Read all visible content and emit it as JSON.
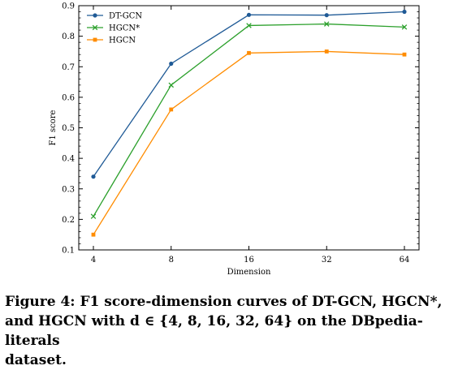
{
  "chart_data": {
    "type": "line",
    "categories": [
      "4",
      "8",
      "16",
      "32",
      "64"
    ],
    "series": [
      {
        "name": "DT-GCN",
        "values": [
          0.34,
          0.71,
          0.87,
          0.869,
          0.88
        ],
        "color": "#1f5a96",
        "marker": "dot"
      },
      {
        "name": "HGCN*",
        "values": [
          0.21,
          0.64,
          0.835,
          0.84,
          0.83
        ],
        "color": "#2ca02c",
        "marker": "x"
      },
      {
        "name": "HGCN",
        "values": [
          0.15,
          0.56,
          0.745,
          0.75,
          0.74
        ],
        "color": "#ff8c00",
        "marker": "square"
      }
    ],
    "xlabel": "Dimension",
    "ylabel": "F1 score",
    "ylim": [
      0.1,
      0.9
    ],
    "yticks": [
      "0.1",
      "0.2",
      "0.3",
      "0.4",
      "0.5",
      "0.6",
      "0.7",
      "0.8",
      "0.9"
    ],
    "legend_position": "top-left",
    "grid": false
  },
  "caption": {
    "line1": "Figure 4: F1 score-dimension curves of DT-GCN, HGCN*,",
    "line2": "and HGCN with d ∈ {4, 8, 16, 32, 64} on the DBpedia-literals",
    "line3": "dataset."
  }
}
